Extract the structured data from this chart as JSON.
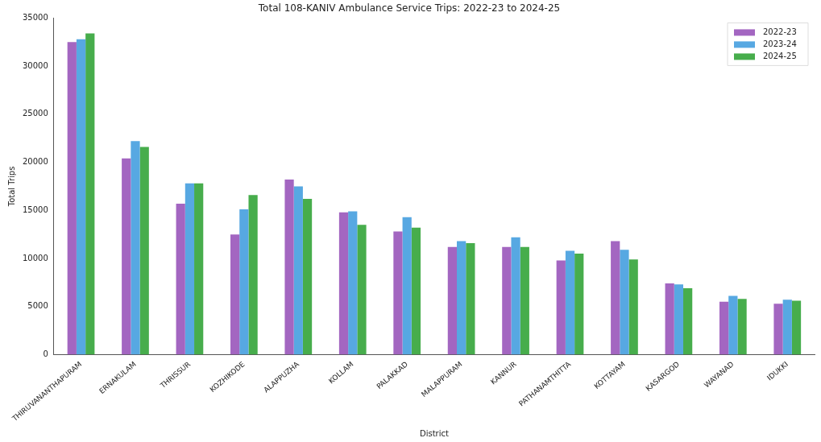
{
  "chart_data": {
    "type": "bar",
    "title": "Total 108-KANIV Ambulance Service Trips: 2022-23 to 2024-25",
    "xlabel": "District",
    "ylabel": "Total Trips",
    "categories": [
      "THIRUVANANTHAPURAM",
      "ERNAKULAM",
      "THRISSUR",
      "KOZHIKODE",
      "ALAPPUZHA",
      "KOLLAM",
      "PALAKKAD",
      "MALAPPURAM",
      "KANNUR",
      "PATHANAMTHITTA",
      "KOTTAYAM",
      "KASARGOD",
      "WAYANAD",
      "IDUKKI"
    ],
    "series": [
      {
        "name": "2022-23",
        "color": "#a366c1",
        "values": [
          32500,
          20400,
          15700,
          12500,
          18200,
          14800,
          12800,
          11200,
          11200,
          9800,
          11800,
          7400,
          5500,
          5300
        ]
      },
      {
        "name": "2023-24",
        "color": "#57a8e2",
        "values": [
          32800,
          22200,
          17800,
          15100,
          17500,
          14900,
          14300,
          11800,
          12200,
          10800,
          10900,
          7300,
          6100,
          5700
        ]
      },
      {
        "name": "2024-25",
        "color": "#47ad4c",
        "values": [
          33400,
          21600,
          17800,
          16600,
          16200,
          13500,
          13200,
          11600,
          11200,
          10500,
          9900,
          6900,
          5800,
          5600
        ]
      }
    ],
    "ylim": [
      0,
      35000
    ],
    "yticks": [
      0,
      5000,
      10000,
      15000,
      20000,
      25000,
      30000,
      35000
    ],
    "grid": false,
    "legend": "top right"
  }
}
